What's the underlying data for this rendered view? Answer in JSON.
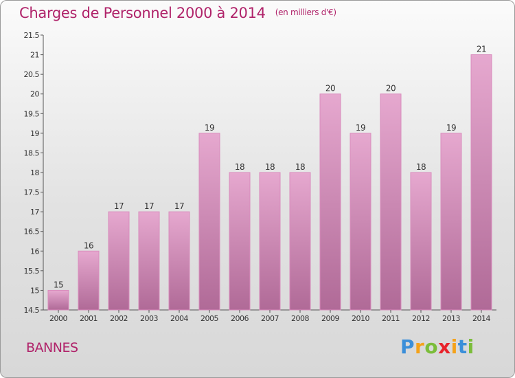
{
  "title": "Charges de Personnel 2000 à 2014",
  "subtitle": "(en milliers d'€)",
  "commune": "BANNES",
  "logo_text": "Proxiti",
  "colors": {
    "title": "#b0236a",
    "bar_top": "#e6a8cf",
    "bar_bottom": "#b06a97",
    "bar_edge": "#d98cbd",
    "logo": [
      "#3b8fd9",
      "#f4a21a",
      "#7bbd3a",
      "#e8232b",
      "#f4a21a",
      "#3b8fd9",
      "#7bbd3a"
    ]
  },
  "chart_data": {
    "type": "bar",
    "categories": [
      "2000",
      "2001",
      "2002",
      "2003",
      "2004",
      "2005",
      "2006",
      "2007",
      "2008",
      "2009",
      "2010",
      "2011",
      "2012",
      "2013",
      "2014"
    ],
    "values": [
      15,
      16,
      17,
      17,
      17,
      19,
      18,
      18,
      18,
      20,
      19,
      20,
      18,
      19,
      21
    ],
    "ylim": [
      14.5,
      21.5
    ],
    "yticks": [
      "14.5",
      "15",
      "15.5",
      "16",
      "16.5",
      "17",
      "17.5",
      "18",
      "18.5",
      "19",
      "19.5",
      "20",
      "20.5",
      "21",
      "21.5"
    ],
    "grid": false,
    "xlabel": "",
    "ylabel": ""
  }
}
